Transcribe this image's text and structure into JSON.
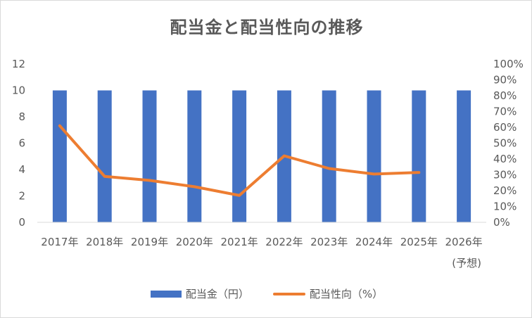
{
  "chart_data": {
    "type": "bar",
    "title": "配当金と配当性向の推移",
    "categories": [
      "2017年",
      "2018年",
      "2019年",
      "2020年",
      "2021年",
      "2022年",
      "2023年",
      "2024年",
      "2025年",
      "2026年"
    ],
    "category_sublabels": [
      "",
      "",
      "",
      "",
      "",
      "",
      "",
      "",
      "",
      "(予想)"
    ],
    "y_left": {
      "ylim": [
        0,
        12
      ],
      "ticks": [
        "0",
        "2",
        "4",
        "6",
        "8",
        "10",
        "12"
      ]
    },
    "y_right": {
      "ylim": [
        0,
        100
      ],
      "ticks": [
        "0%",
        "10%",
        "20%",
        "30%",
        "40%",
        "50%",
        "60%",
        "70%",
        "80%",
        "90%",
        "100%"
      ]
    },
    "series": [
      {
        "name": "配当金（円）",
        "type": "bar",
        "axis": "left",
        "color": "#4472c4",
        "values": [
          10,
          10,
          10,
          10,
          10,
          10,
          10,
          10,
          10,
          10
        ]
      },
      {
        "name": "配当性向（%）",
        "type": "line",
        "axis": "right",
        "color": "#ed7d31",
        "values": [
          61,
          29,
          26.5,
          22.5,
          17,
          42,
          34,
          30.5,
          31.5,
          null
        ]
      }
    ],
    "grid": false,
    "legend_position": "bottom"
  }
}
